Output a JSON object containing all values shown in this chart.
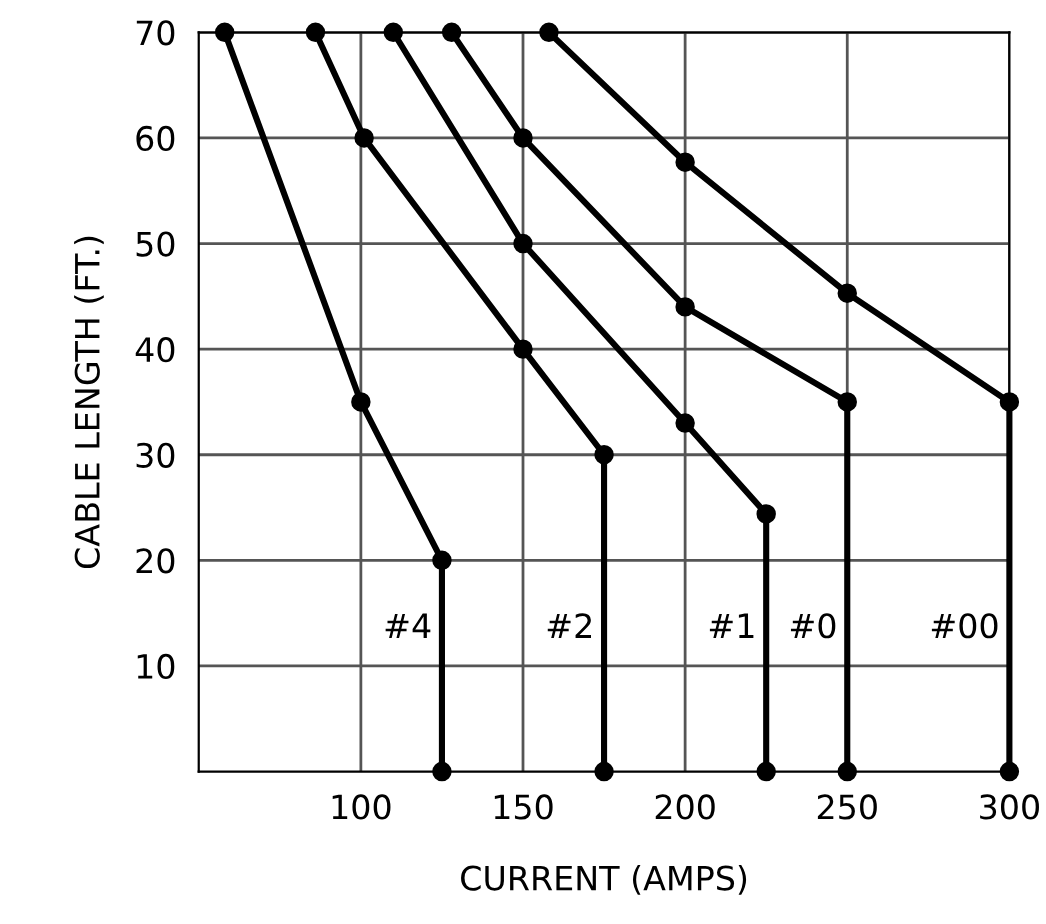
{
  "chart_data": {
    "type": "line",
    "xlabel": "CURRENT (AMPS)",
    "ylabel": "CABLE LENGTH (FT.)",
    "xlim": [
      50,
      300
    ],
    "xticks": [
      100,
      150,
      200,
      250,
      300
    ],
    "ylim": [
      0,
      70
    ],
    "yticks": [
      10,
      20,
      30,
      40,
      50,
      60,
      70
    ],
    "grid": true,
    "marker": "circle",
    "line_style": "solid",
    "legend": false,
    "series": [
      {
        "name": "#4",
        "color": "#000000",
        "x": [
          58,
          100,
          125,
          125
        ],
        "values": [
          70,
          35,
          20,
          0
        ]
      },
      {
        "name": "#2",
        "color": "#000000",
        "x": [
          86,
          101,
          150,
          175,
          175
        ],
        "values": [
          70,
          60,
          40,
          30,
          0
        ]
      },
      {
        "name": "#1",
        "color": "#000000",
        "x": [
          110,
          150,
          200,
          225,
          225
        ],
        "values": [
          70,
          50,
          33,
          24.4,
          0
        ]
      },
      {
        "name": "#0",
        "color": "#000000",
        "x": [
          128,
          150,
          200,
          250,
          250
        ],
        "values": [
          70,
          60,
          44,
          35,
          0
        ]
      },
      {
        "name": "#00",
        "color": "#000000",
        "x": [
          158,
          200,
          250,
          300,
          300
        ],
        "values": [
          70,
          57.7,
          45.3,
          35,
          0
        ]
      }
    ]
  }
}
